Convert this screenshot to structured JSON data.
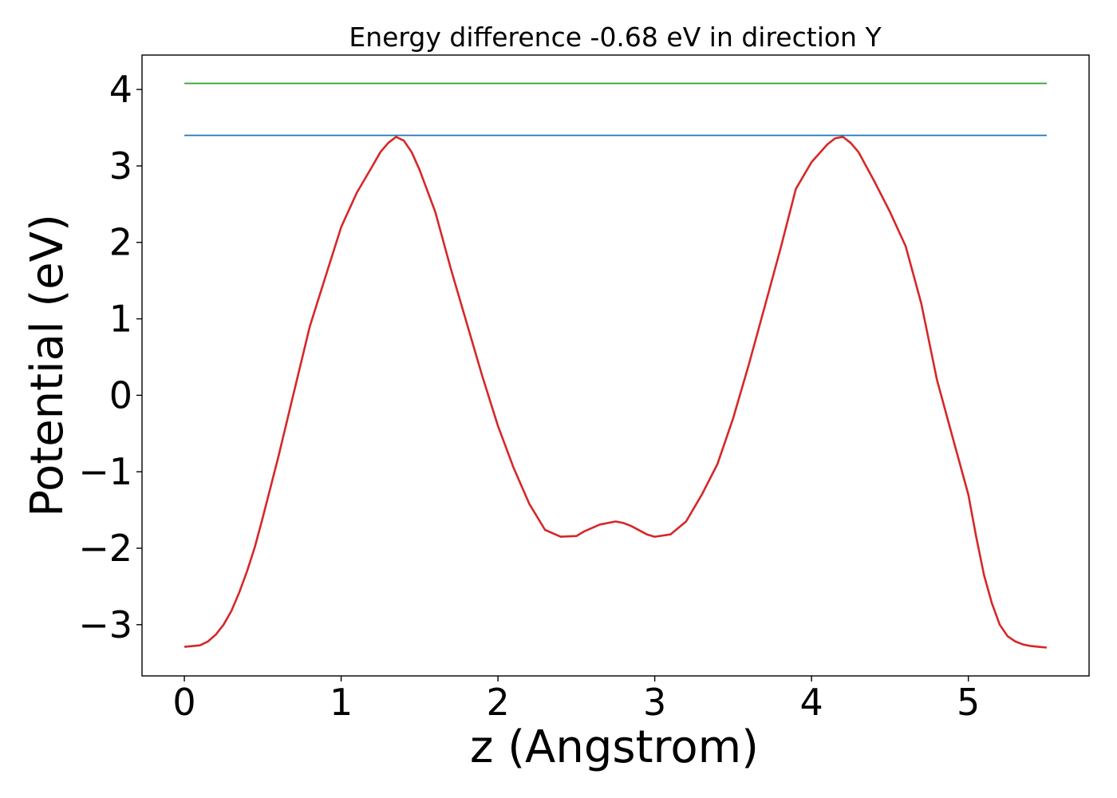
{
  "chart_data": {
    "type": "line",
    "title": "Energy difference -0.68 eV in direction Y",
    "xlabel": "z (Angstrom)",
    "ylabel": "Potential (eV)",
    "xlim": [
      -0.27,
      5.77
    ],
    "ylim": [
      -3.67,
      4.45
    ],
    "xticks": [
      0,
      1,
      2,
      3,
      4,
      5
    ],
    "xtick_labels": [
      "0",
      "1",
      "2",
      "3",
      "4",
      "5"
    ],
    "yticks": [
      -3,
      -2,
      -1,
      0,
      1,
      2,
      3,
      4
    ],
    "ytick_labels": [
      "−3",
      "−2",
      "−1",
      "0",
      "1",
      "2",
      "3",
      "4"
    ],
    "grid": false,
    "series": [
      {
        "color": "#2ca02c",
        "x": [
          0,
          5.5
        ],
        "y": [
          4.08,
          4.08
        ]
      },
      {
        "color": "#1f77b4",
        "x": [
          0,
          5.5
        ],
        "y": [
          3.4,
          3.4
        ]
      },
      {
        "color": "#d62728",
        "x": [
          0,
          0.1,
          0.15,
          0.2,
          0.25,
          0.3,
          0.35,
          0.4,
          0.45,
          0.5,
          0.6,
          0.7,
          0.8,
          0.9,
          1.0,
          1.1,
          1.2,
          1.25,
          1.3,
          1.35,
          1.4,
          1.45,
          1.5,
          1.6,
          1.7,
          1.8,
          1.9,
          2.0,
          2.1,
          2.2,
          2.3,
          2.4,
          2.5,
          2.55,
          2.65,
          2.75,
          2.8,
          2.85,
          2.95,
          3.0,
          3.1,
          3.2,
          3.3,
          3.4,
          3.5,
          3.6,
          3.7,
          3.8,
          3.9,
          4.0,
          4.1,
          4.15,
          4.2,
          4.25,
          4.3,
          4.4,
          4.5,
          4.6,
          4.7,
          4.8,
          4.9,
          5.0,
          5.05,
          5.1,
          5.15,
          5.2,
          5.25,
          5.3,
          5.35,
          5.4,
          5.45,
          5.5
        ],
        "y": [
          -3.29,
          -3.27,
          -3.22,
          -3.13,
          -3.0,
          -2.82,
          -2.58,
          -2.3,
          -1.98,
          -1.6,
          -0.8,
          0.05,
          0.9,
          1.55,
          2.2,
          2.65,
          3.0,
          3.18,
          3.3,
          3.38,
          3.33,
          3.18,
          2.95,
          2.4,
          1.65,
          0.95,
          0.25,
          -0.4,
          -0.95,
          -1.42,
          -1.76,
          -1.85,
          -1.84,
          -1.78,
          -1.69,
          -1.65,
          -1.67,
          -1.71,
          -1.82,
          -1.85,
          -1.82,
          -1.65,
          -1.3,
          -0.9,
          -0.3,
          0.4,
          1.15,
          1.9,
          2.7,
          3.05,
          3.28,
          3.36,
          3.38,
          3.3,
          3.18,
          2.8,
          2.4,
          1.95,
          1.2,
          0.2,
          -0.55,
          -1.3,
          -1.85,
          -2.35,
          -2.72,
          -3.0,
          -3.15,
          -3.22,
          -3.26,
          -3.28,
          -3.29,
          -3.3
        ]
      }
    ]
  }
}
